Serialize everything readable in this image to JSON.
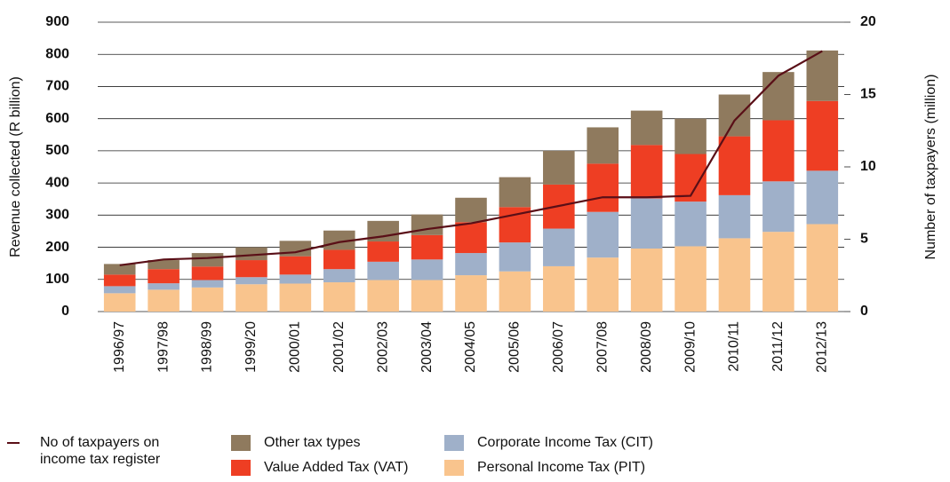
{
  "chart_data": {
    "type": "bar",
    "stacked": true,
    "categories": [
      "1996/97",
      "1997/98",
      "1998/99",
      "1999/20",
      "2000/01",
      "2001/02",
      "2002/03",
      "2003/04",
      "2004/05",
      "2005/06",
      "2006/07",
      "2007/08",
      "2008/09",
      "2009/10",
      "2010/11",
      "2011/12",
      "2012/13"
    ],
    "series": [
      {
        "name": "Personal Income Tax (PIT)",
        "color": "#f9c48d",
        "values": [
          57,
          68,
          75,
          85,
          87,
          91,
          98,
          98,
          113,
          125,
          141,
          168,
          196,
          203,
          228,
          248,
          272
        ]
      },
      {
        "name": "Corporate Income Tax (CIT)",
        "color": "#9fb0c9",
        "values": [
          22,
          20,
          23,
          22,
          28,
          41,
          57,
          64,
          69,
          90,
          117,
          142,
          156,
          139,
          134,
          157,
          166
        ]
      },
      {
        "name": "Value Added Tax (VAT)",
        "color": "#ee3e23",
        "values": [
          36,
          44,
          42,
          53,
          57,
          60,
          63,
          76,
          96,
          110,
          137,
          150,
          166,
          148,
          183,
          190,
          217
        ]
      },
      {
        "name": "Other tax types",
        "color": "#8f7a5e",
        "values": [
          33,
          28,
          42,
          40,
          48,
          60,
          64,
          64,
          76,
          93,
          105,
          113,
          107,
          110,
          130,
          150,
          157
        ]
      },
      {
        "name": "No of taxpayers on income tax register",
        "color": "#5a0f17",
        "type": "line",
        "axis": "y2",
        "values": [
          3.2,
          3.6,
          3.7,
          3.9,
          4.1,
          4.8,
          5.2,
          5.7,
          6.1,
          6.7,
          7.3,
          7.9,
          7.9,
          8.0,
          13.2,
          16.3,
          18.0
        ]
      }
    ],
    "ylabel": "Revenue collected (R billion)",
    "y2label": "Number of taxpayers (million)",
    "ylim": [
      0,
      900
    ],
    "yticks": [
      0,
      100,
      200,
      300,
      400,
      500,
      600,
      700,
      800,
      900
    ],
    "y2lim": [
      0,
      20
    ],
    "y2ticks": [
      0,
      5,
      10,
      15,
      20
    ],
    "grid": true,
    "legend": "bottom"
  }
}
